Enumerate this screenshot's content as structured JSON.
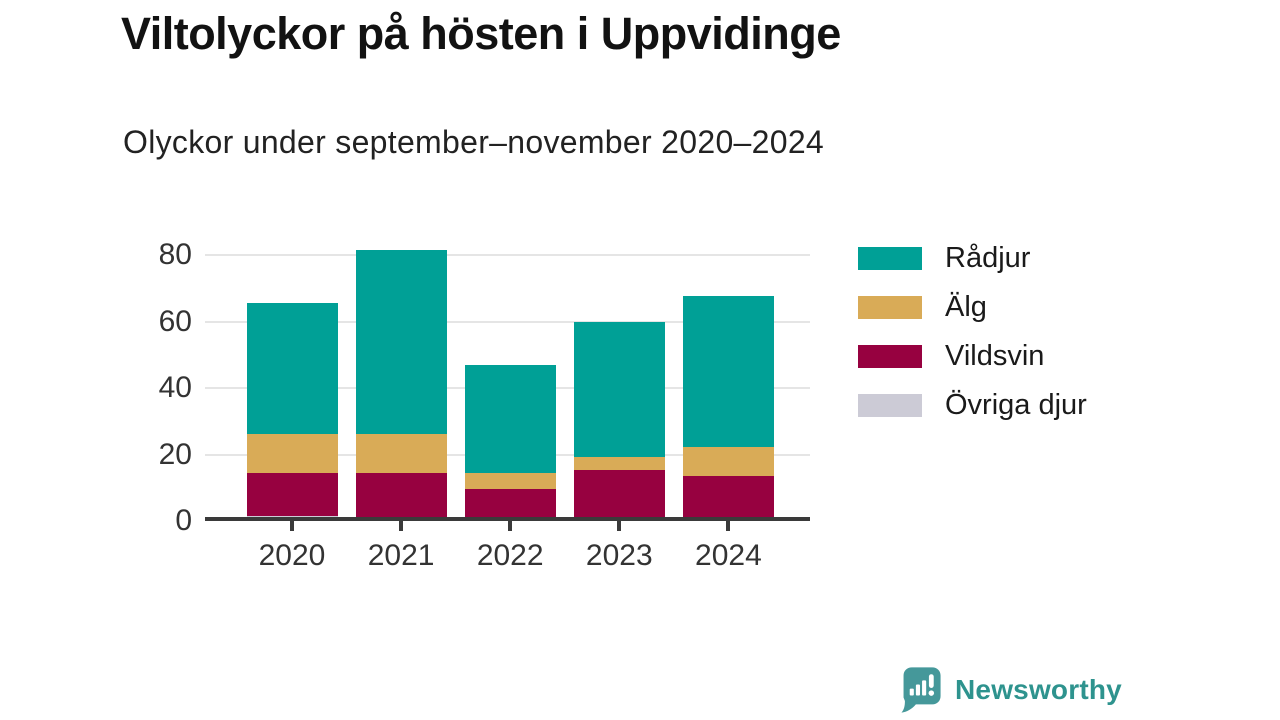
{
  "header": {
    "title": "Viltolyckor på hösten i Uppvidinge",
    "subtitle": "Olyckor under september–november 2020–2024"
  },
  "chart_data": {
    "type": "bar",
    "stacked": true,
    "title": "Viltolyckor på hösten i Uppvidinge",
    "subtitle": "Olyckor under september–november 2020–2024",
    "categories": [
      "2020",
      "2021",
      "2022",
      "2023",
      "2024"
    ],
    "series": [
      {
        "name": "Rådjur",
        "color": "#00a096",
        "values": [
          40,
          56,
          33,
          41,
          46
        ]
      },
      {
        "name": "Älg",
        "color": "#d9ab57",
        "values": [
          12,
          12,
          5,
          4,
          9
        ]
      },
      {
        "name": "Vildsvin",
        "color": "#970140",
        "values": [
          13,
          14,
          9,
          15,
          13
        ]
      },
      {
        "name": "Övriga djur",
        "color": "#cccbd6",
        "values": [
          1,
          0,
          0,
          0,
          0
        ]
      }
    ],
    "totals": [
      66,
      82,
      47,
      60,
      68
    ],
    "xlabel": "",
    "ylabel": "",
    "ylim": [
      0,
      85
    ],
    "yticks": [
      0,
      20,
      40,
      60,
      80
    ],
    "grid": true,
    "legend_position": "right",
    "colors": {
      "axis": "#3a3a3a",
      "gridline": "#e5e5e5",
      "tick_text": "#333333"
    }
  },
  "footer": {
    "brand": "Newsworthy",
    "brand_color": "#2e938e",
    "icon_color": "#45989a"
  }
}
